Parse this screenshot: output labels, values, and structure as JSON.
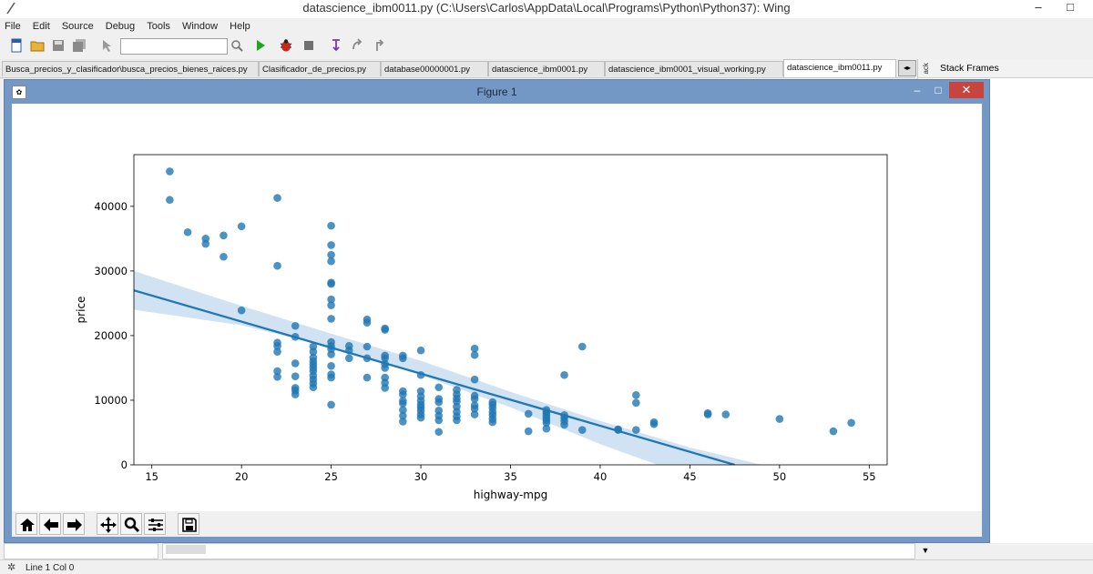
{
  "window": {
    "title": "datascience_ibm0011.py (C:\\Users\\Carlos\\AppData\\Local\\Programs\\Python\\Python37): Wing",
    "min_symbol": "–",
    "max_symbol": "□"
  },
  "menu": [
    "File",
    "Edit",
    "Source",
    "Debug",
    "Tools",
    "Window",
    "Help"
  ],
  "toolbar": {
    "search_value": "",
    "icons": [
      "new-file-icon",
      "open-folder-icon",
      "save-icon",
      "save-all-icon",
      "cursor-icon",
      "search-icon",
      "run-icon",
      "debug-bug-icon",
      "stop-icon",
      "step-into-icon",
      "step-over-icon",
      "step-out-icon"
    ]
  },
  "tabs": [
    {
      "label": "Busca_precios_y_clasificador\\busca_precios_bienes_raices.py"
    },
    {
      "label": "Clasificador_de_precios.py"
    },
    {
      "label": "database00000001.py"
    },
    {
      "label": "datascience_ibm0001.py"
    },
    {
      "label": "datascience_ibm0001_visual_working.py"
    },
    {
      "label": "datascience_ibm0011.py",
      "active": true
    }
  ],
  "right_panel": {
    "title": "Stack Frames",
    "side_tab": "ack"
  },
  "figure": {
    "title": "Figure 1",
    "close_symbol": "✕"
  },
  "chart_data": {
    "type": "scatter",
    "xlabel": "highway-mpg",
    "ylabel": "price",
    "xlim": [
      14,
      56
    ],
    "ylim": [
      0,
      48000
    ],
    "xticks": [
      15,
      20,
      25,
      30,
      35,
      40,
      45,
      50,
      55
    ],
    "yticks": [
      0,
      10000,
      20000,
      30000,
      40000
    ],
    "colors": {
      "points": "#1f77b4",
      "line": "#1f77b4",
      "band": "#c6dbef"
    },
    "points": [
      [
        16,
        45400
      ],
      [
        16,
        41000
      ],
      [
        17,
        36000
      ],
      [
        18,
        35000
      ],
      [
        18,
        34200
      ],
      [
        19,
        35500
      ],
      [
        19,
        32200
      ],
      [
        20,
        36900
      ],
      [
        20,
        23900
      ],
      [
        22,
        41300
      ],
      [
        22,
        30800
      ],
      [
        22,
        18900
      ],
      [
        22,
        18400
      ],
      [
        22,
        17500
      ],
      [
        22,
        14500
      ],
      [
        22,
        13600
      ],
      [
        23,
        21500
      ],
      [
        23,
        19800
      ],
      [
        23,
        15700
      ],
      [
        23,
        13700
      ],
      [
        23,
        11900
      ],
      [
        23,
        11500
      ],
      [
        23,
        10900
      ],
      [
        24,
        18300
      ],
      [
        24,
        17500
      ],
      [
        24,
        16600
      ],
      [
        24,
        16000
      ],
      [
        24,
        15500
      ],
      [
        24,
        15000
      ],
      [
        24,
        14500
      ],
      [
        24,
        13800
      ],
      [
        24,
        13200
      ],
      [
        24,
        12600
      ],
      [
        24,
        12000
      ],
      [
        25,
        37000
      ],
      [
        25,
        34000
      ],
      [
        25,
        32500
      ],
      [
        25,
        31500
      ],
      [
        25,
        28200
      ],
      [
        25,
        28000
      ],
      [
        25,
        25600
      ],
      [
        25,
        24700
      ],
      [
        25,
        22600
      ],
      [
        25,
        19000
      ],
      [
        25,
        18400
      ],
      [
        25,
        17900
      ],
      [
        25,
        17100
      ],
      [
        25,
        15300
      ],
      [
        25,
        14000
      ],
      [
        25,
        13500
      ],
      [
        25,
        9300
      ],
      [
        26,
        18400
      ],
      [
        26,
        17700
      ],
      [
        26,
        16500
      ],
      [
        27,
        22500
      ],
      [
        27,
        22000
      ],
      [
        27,
        18300
      ],
      [
        27,
        16500
      ],
      [
        27,
        13500
      ],
      [
        28,
        21100
      ],
      [
        28,
        20900
      ],
      [
        28,
        16900
      ],
      [
        28,
        16500
      ],
      [
        28,
        15600
      ],
      [
        28,
        15000
      ],
      [
        28,
        13500
      ],
      [
        28,
        12700
      ],
      [
        28,
        11900
      ],
      [
        29,
        16900
      ],
      [
        29,
        16500
      ],
      [
        29,
        11400
      ],
      [
        29,
        10900
      ],
      [
        29,
        9900
      ],
      [
        29,
        9500
      ],
      [
        29,
        8500
      ],
      [
        29,
        7600
      ],
      [
        29,
        6700
      ],
      [
        30,
        17700
      ],
      [
        30,
        13900
      ],
      [
        30,
        11400
      ],
      [
        30,
        10600
      ],
      [
        30,
        9900
      ],
      [
        30,
        9300
      ],
      [
        30,
        8900
      ],
      [
        30,
        8400
      ],
      [
        30,
        7800
      ],
      [
        30,
        7300
      ],
      [
        31,
        12000
      ],
      [
        31,
        10200
      ],
      [
        31,
        9700
      ],
      [
        31,
        8400
      ],
      [
        31,
        7600
      ],
      [
        31,
        6900
      ],
      [
        31,
        5100
      ],
      [
        32,
        11600
      ],
      [
        32,
        10900
      ],
      [
        32,
        10300
      ],
      [
        32,
        9800
      ],
      [
        32,
        9000
      ],
      [
        32,
        8200
      ],
      [
        32,
        7500
      ],
      [
        32,
        6900
      ],
      [
        33,
        18000
      ],
      [
        33,
        17000
      ],
      [
        33,
        13200
      ],
      [
        33,
        10700
      ],
      [
        33,
        10200
      ],
      [
        33,
        9200
      ],
      [
        33,
        8700
      ],
      [
        33,
        7800
      ],
      [
        34,
        9700
      ],
      [
        34,
        9300
      ],
      [
        34,
        8800
      ],
      [
        34,
        8200
      ],
      [
        34,
        7700
      ],
      [
        34,
        7100
      ],
      [
        34,
        6600
      ],
      [
        36,
        7900
      ],
      [
        36,
        5200
      ],
      [
        37,
        8500
      ],
      [
        37,
        8100
      ],
      [
        37,
        7700
      ],
      [
        37,
        7300
      ],
      [
        37,
        6900
      ],
      [
        37,
        6500
      ],
      [
        37,
        5600
      ],
      [
        38,
        13900
      ],
      [
        38,
        7700
      ],
      [
        38,
        7300
      ],
      [
        38,
        6800
      ],
      [
        38,
        6200
      ],
      [
        39,
        18300
      ],
      [
        39,
        5400
      ],
      [
        41,
        5500
      ],
      [
        41,
        5400
      ],
      [
        42,
        10800
      ],
      [
        42,
        9600
      ],
      [
        42,
        5400
      ],
      [
        43,
        6600
      ],
      [
        43,
        6300
      ],
      [
        46,
        8000
      ],
      [
        46,
        7800
      ],
      [
        47,
        7800
      ],
      [
        50,
        7100
      ],
      [
        53,
        5200
      ],
      [
        54,
        6500
      ]
    ],
    "regression": {
      "x0": 14,
      "y0": 27000,
      "x1": 47.5,
      "y1": 0
    },
    "band": {
      "upper": [
        [
          14,
          30000
        ],
        [
          20,
          24600
        ],
        [
          25,
          20300
        ],
        [
          30,
          16100
        ],
        [
          35,
          11300
        ],
        [
          40,
          6800
        ],
        [
          45,
          2700
        ],
        [
          49,
          0
        ]
      ],
      "lower": [
        [
          14,
          24000
        ],
        [
          20,
          21600
        ],
        [
          25,
          18200
        ],
        [
          30,
          13900
        ],
        [
          35,
          8900
        ],
        [
          40,
          3200
        ],
        [
          45,
          -1800
        ],
        [
          46,
          -3000
        ]
      ]
    }
  },
  "status": {
    "line": "Line 1 Col 0"
  }
}
